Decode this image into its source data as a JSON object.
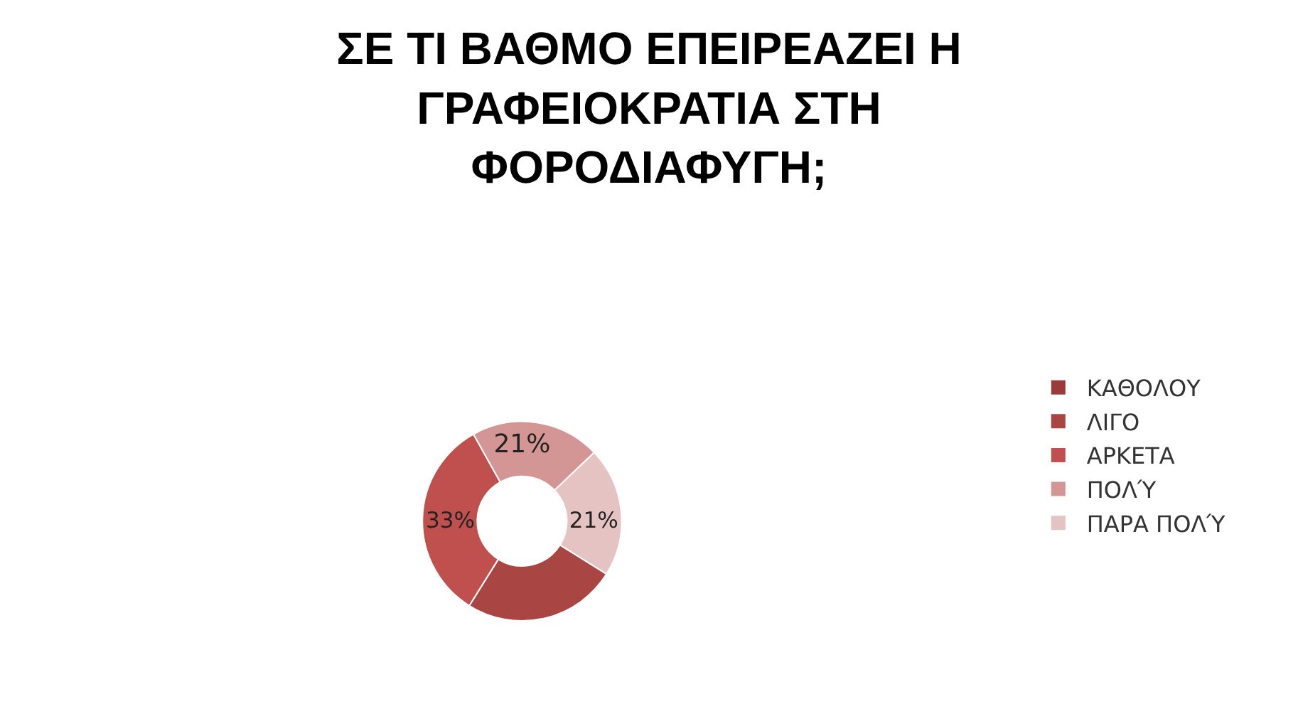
{
  "chart_data": {
    "type": "donut",
    "title": "ΣΕ ΤΙ ΒΑΘΜΟ ΕΠΕΙΡΕΑΖΕΙ Η\nΓΡΑΦΕΙΟΚΡΑΤΙΑ ΣΤΗ\nΦΟΡΟΔΙΑΦΥΓΗ;",
    "categories": [
      "ΚΑΘΟΛΟΥ",
      "ΛΙΓΟ",
      "ΑΡΚΕΤΑ",
      "ΠΟΛΎ",
      "ΠΑΡΑ ΠΟΛΎ"
    ],
    "values": [
      0,
      25,
      33,
      21,
      21
    ],
    "value_labels": [
      null,
      null,
      "33%",
      "21%",
      "21%"
    ],
    "colors": [
      "#9b3a38",
      "#a94543",
      "#c0504d",
      "#d49694",
      "#e5c3c2"
    ],
    "legend": "right"
  }
}
